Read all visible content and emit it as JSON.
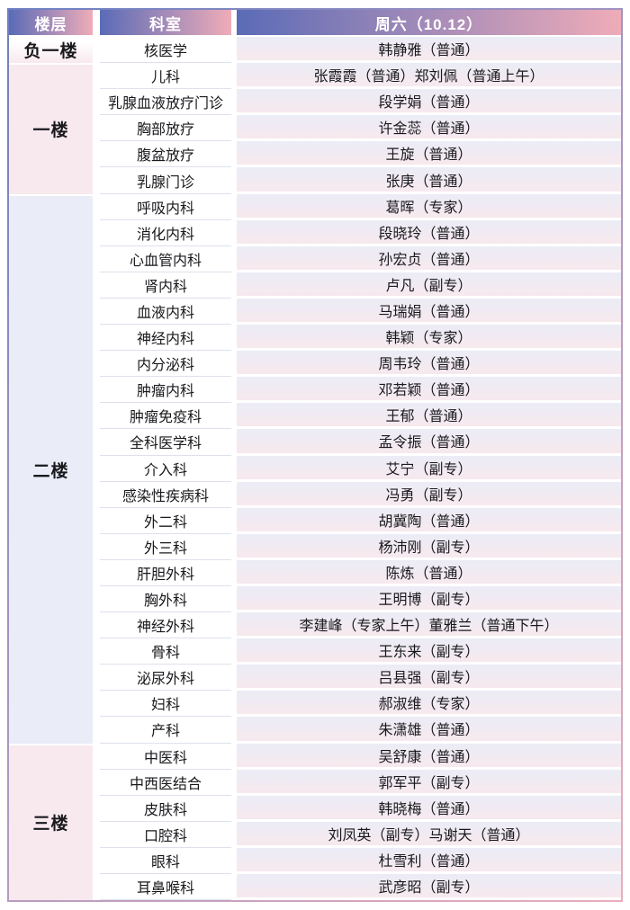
{
  "table": {
    "headers": [
      {
        "label": "楼层"
      },
      {
        "label": "科室"
      },
      {
        "label": "周六（10.12）"
      }
    ],
    "sections": [
      {
        "floor": "负一楼",
        "rows": [
          {
            "dept": "核医学",
            "doctor": "韩静雅（普通）"
          }
        ]
      },
      {
        "floor": "一楼",
        "rows": [
          {
            "dept": "儿科",
            "doctor": "张霞霞（普通）郑刘佩（普通上午）"
          },
          {
            "dept": "乳腺血液放疗门诊",
            "doctor": "段学娟（普通）"
          },
          {
            "dept": "胸部放疗",
            "doctor": "许金蕊（普通）"
          },
          {
            "dept": "腹盆放疗",
            "doctor": "王旋（普通）"
          },
          {
            "dept": "乳腺门诊",
            "doctor": "张庚（普通）"
          }
        ]
      },
      {
        "floor": "二楼",
        "rows": [
          {
            "dept": "呼吸内科",
            "doctor": "葛晖（专家）"
          },
          {
            "dept": "消化内科",
            "doctor": "段晓玲（普通）"
          },
          {
            "dept": "心血管内科",
            "doctor": "孙宏贞（普通）"
          },
          {
            "dept": "肾内科",
            "doctor": "卢凡（副专）"
          },
          {
            "dept": "血液内科",
            "doctor": "马瑞娟（普通）"
          },
          {
            "dept": "神经内科",
            "doctor": "韩颖（专家）"
          },
          {
            "dept": "内分泌科",
            "doctor": "周韦玲（普通）"
          },
          {
            "dept": "肿瘤内科",
            "doctor": "邓若颖（普通）"
          },
          {
            "dept": "肿瘤免疫科",
            "doctor": "王郁（普通）"
          },
          {
            "dept": "全科医学科",
            "doctor": "孟令振（普通）"
          },
          {
            "dept": "介入科",
            "doctor": "艾宁（副专）"
          },
          {
            "dept": "感染性疾病科",
            "doctor": "冯勇（副专）"
          },
          {
            "dept": "外二科",
            "doctor": "胡冀陶（普通）"
          },
          {
            "dept": "外三科",
            "doctor": "杨沛刚（副专）"
          },
          {
            "dept": "肝胆外科",
            "doctor": "陈炼（普通）"
          },
          {
            "dept": "胸外科",
            "doctor": "王明博（副专）"
          },
          {
            "dept": "神经外科",
            "doctor": "李建峰（专家上午）董雅兰（普通下午）"
          },
          {
            "dept": "骨科",
            "doctor": "王东来（副专）"
          },
          {
            "dept": "泌尿外科",
            "doctor": "吕县强（副专）"
          },
          {
            "dept": "妇科",
            "doctor": "郝淑维（专家）"
          },
          {
            "dept": "产科",
            "doctor": "朱潇雄（普通）"
          }
        ]
      },
      {
        "floor": "三楼",
        "rows": [
          {
            "dept": "中医科",
            "doctor": "吴舒康（普通）"
          },
          {
            "dept": "中西医结合",
            "doctor": "郭军平（副专）"
          },
          {
            "dept": "皮肤科",
            "doctor": "韩晓梅（普通）"
          },
          {
            "dept": "口腔科",
            "doctor": "刘凤英（副专）马谢天（普通）"
          },
          {
            "dept": "眼科",
            "doctor": "杜雪利（普通）"
          },
          {
            "dept": "耳鼻喉科",
            "doctor": "武彦昭（副专）"
          }
        ]
      }
    ]
  },
  "colors": {
    "header-grad-left": "#5a6bb7",
    "header-grad-right": "#efacb8",
    "header-text": "#ffffff",
    "body-text": "#19191d",
    "floor-pink": "#f8e9ee",
    "floor-blue": "#eaedf7",
    "sched-grad-top": "#ebecf6",
    "sched-grad-bottom": "#f7e9ee",
    "dept-bg": "#ffffff",
    "divider": "#dee1ec",
    "border-blue": "#6e80c2",
    "border-pink": "#e9aebc"
  }
}
